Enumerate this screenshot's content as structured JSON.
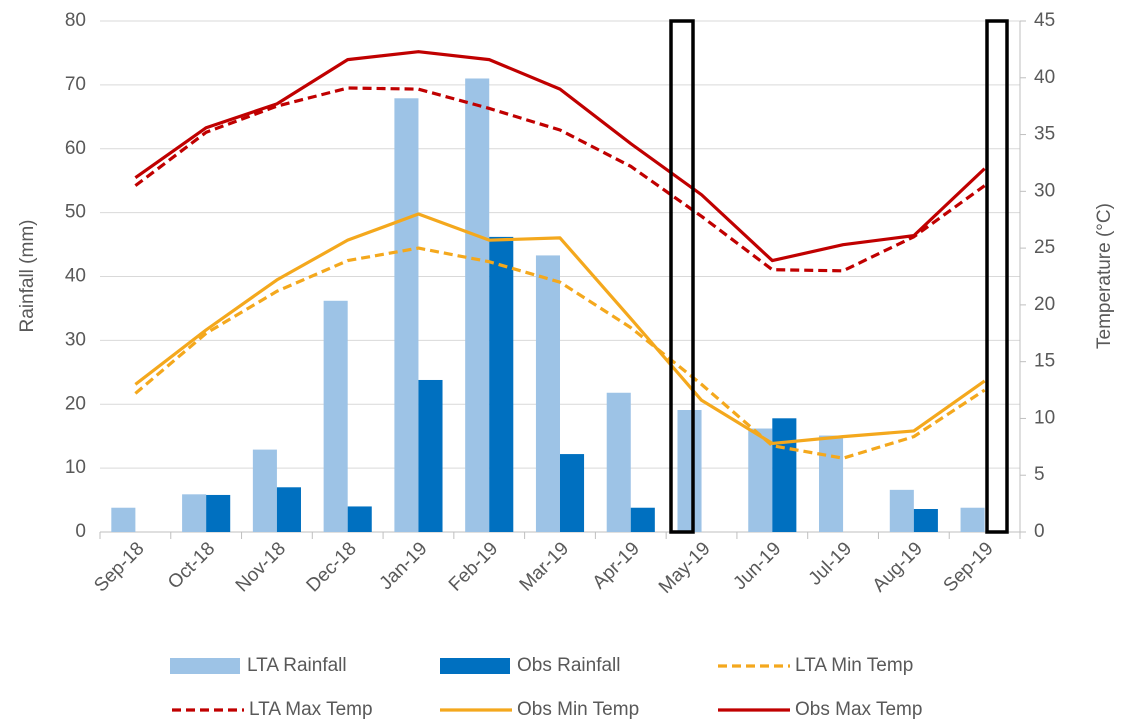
{
  "chart_data": {
    "type": "combo",
    "categories": [
      "Sep-18",
      "Oct-18",
      "Nov-18",
      "Dec-18",
      "Jan-19",
      "Feb-19",
      "Mar-19",
      "Apr-19",
      "May-19",
      "Jun-19",
      "Jul-19",
      "Aug-19",
      "Sep-19"
    ],
    "y_label": "Rainfall (mm)",
    "y2_label": "Temperature (°C)",
    "ylim": [
      0,
      80
    ],
    "yticks": [
      0,
      10,
      20,
      30,
      40,
      50,
      60,
      70,
      80
    ],
    "y2lim": [
      0,
      45
    ],
    "y2ticks": [
      0,
      5,
      10,
      15,
      20,
      25,
      30,
      35,
      40,
      45
    ],
    "grid": true,
    "legend": "bottom",
    "series": [
      {
        "name": "LTA Rainfall",
        "type": "bar",
        "color": "#9dc3e6",
        "values": [
          3.8,
          5.9,
          12.9,
          36.2,
          67.9,
          71.0,
          43.3,
          21.8,
          19.1,
          16.2,
          15.1,
          6.6,
          3.8
        ]
      },
      {
        "name": "Obs Rainfall",
        "type": "bar",
        "color": "#0070c0",
        "values": [
          null,
          5.8,
          7.0,
          4.0,
          23.8,
          46.2,
          12.2,
          3.8,
          null,
          17.8,
          null,
          3.6,
          null
        ]
      },
      {
        "name": "LTA Min Temp",
        "type": "line",
        "dashed": true,
        "axis": "y2",
        "color": "#f4a81d",
        "values": [
          12.2,
          17.5,
          21.2,
          23.9,
          25.0,
          23.8,
          22.0,
          18.0,
          13.0,
          7.6,
          6.5,
          8.4,
          12.5
        ]
      },
      {
        "name": "LTA Max Temp",
        "type": "line",
        "dashed": true,
        "axis": "y2",
        "color": "#c00000",
        "values": [
          30.5,
          35.2,
          37.5,
          39.1,
          39.0,
          37.3,
          35.4,
          32.2,
          27.8,
          23.1,
          23.0,
          26.0,
          30.5
        ]
      },
      {
        "name": "Obs Min Temp",
        "type": "line",
        "dashed": false,
        "axis": "y2",
        "color": "#f4a81d",
        "values": [
          13.0,
          17.8,
          22.2,
          25.7,
          28.0,
          25.7,
          25.9,
          18.8,
          11.6,
          7.8,
          8.4,
          8.9,
          13.3
        ]
      },
      {
        "name": "Obs Max Temp",
        "type": "line",
        "dashed": false,
        "axis": "y2",
        "color": "#c00000",
        "values": [
          31.2,
          35.6,
          37.7,
          41.6,
          42.3,
          41.6,
          39.0,
          34.2,
          29.7,
          23.9,
          25.3,
          26.1,
          32.0
        ]
      }
    ]
  }
}
